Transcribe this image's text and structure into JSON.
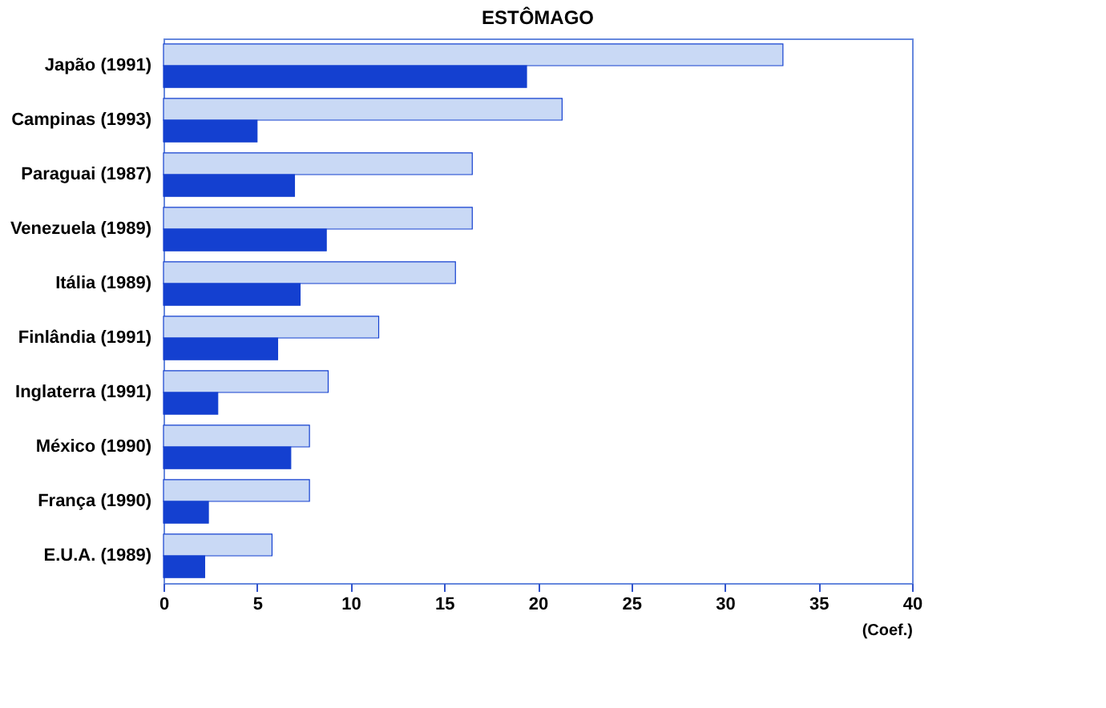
{
  "chart_data": {
    "type": "bar",
    "orientation": "horizontal",
    "title": "ESTÔMAGO",
    "xlabel": "(Coef.)",
    "categories": [
      "Japão (1991)",
      "Campinas (1993)",
      "Paraguai (1987)",
      "Venezuela (1989)",
      "Itália (1989)",
      "Finlândia (1991)",
      "Inglaterra (1991)",
      "México (1990)",
      "França (1990)",
      "E.U.A. (1989)"
    ],
    "series": [
      {
        "color": "#c9d9f5",
        "values": [
          33.1,
          21.3,
          16.5,
          16.5,
          15.6,
          11.5,
          8.8,
          7.8,
          7.8,
          5.8
        ]
      },
      {
        "color": "#1440d0",
        "values": [
          19.4,
          5.0,
          7.0,
          8.7,
          7.3,
          6.1,
          2.9,
          6.8,
          2.4,
          2.2
        ]
      }
    ],
    "xlim": [
      0,
      40
    ],
    "xticks": [
      0,
      5,
      10,
      15,
      20,
      25,
      30,
      35,
      40
    ],
    "grid": false,
    "legend": false
  }
}
